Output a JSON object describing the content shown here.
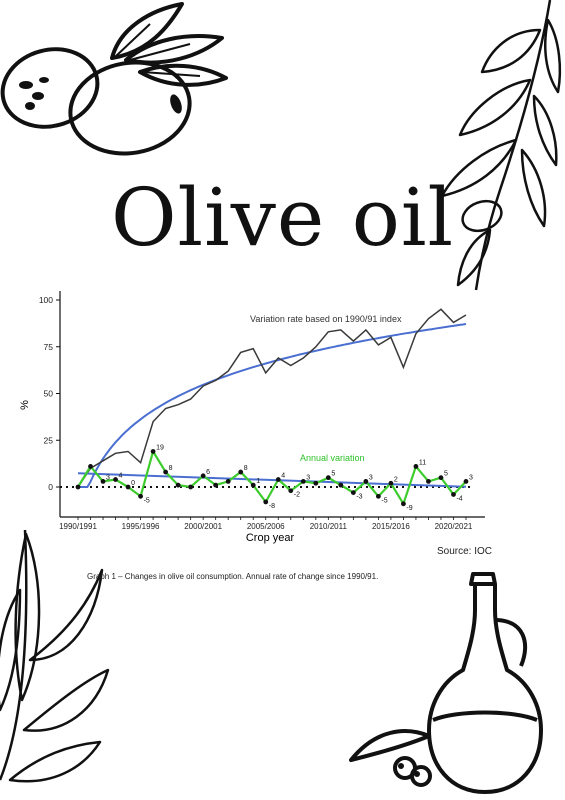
{
  "title": "Olive oil",
  "source": "Source: IOC",
  "caption": "Graph 1 – Changes in olive oil consumption. Annual rate of change since 1990/91.",
  "colors": {
    "index_line": "#3a3a3a",
    "trend_line": "#4a6fd0",
    "annual_line": "#3ccc2c",
    "annual_text": "#2ec02a",
    "ink": "#111111"
  },
  "icons": [
    "olives-with-leaves-icon",
    "olive-branch-icon",
    "leaves-icon",
    "olive-oil-bottle-icon"
  ],
  "chart_data": {
    "type": "line",
    "xlabel": "Crop year",
    "ylabel": "%",
    "ylim": [
      -10,
      100
    ],
    "yticks": [
      0,
      25,
      50,
      75,
      100
    ],
    "x": [
      "1990/91",
      "1991/92",
      "1992/93",
      "1993/94",
      "1994/95",
      "1995/96",
      "1996/97",
      "1997/98",
      "1998/99",
      "1999/00",
      "2000/01",
      "2001/02",
      "2002/03",
      "2003/04",
      "2004/05",
      "2005/06",
      "2006/07",
      "2007/08",
      "2008/09",
      "2009/10",
      "2010/11",
      "2011/12",
      "2012/13",
      "2013/14",
      "2014/15",
      "2015/16",
      "2016/17",
      "2017/18",
      "2018/19",
      "2019/20",
      "2020/21",
      "2021/22"
    ],
    "xtick_labels": [
      "1990/1991",
      "1995/1996",
      "2000/2001",
      "2005/2006",
      "2010/2011",
      "2015/2016",
      "2020/2021"
    ],
    "series": [
      {
        "name": "Variation rate based on 1990/91 index",
        "values": [
          0,
          10,
          14,
          18,
          19,
          13,
          35,
          42,
          44,
          47,
          54,
          57,
          62,
          72,
          74,
          61,
          69,
          65,
          69,
          75,
          83,
          84,
          78,
          84,
          76,
          80,
          64,
          82,
          90,
          95,
          88,
          92
        ]
      },
      {
        "name": "Annual variation",
        "values": [
          0,
          11,
          3,
          4,
          0,
          -5,
          19,
          8,
          1,
          0,
          6,
          1,
          3,
          8,
          1,
          -8,
          4,
          -2,
          3,
          2,
          5,
          1,
          -3,
          3,
          -5,
          2,
          -9,
          11,
          3,
          5,
          -4,
          3
        ],
        "labels": [
          "",
          "",
          "3",
          "4",
          "0",
          "-5",
          "19",
          "8",
          "",
          "",
          "6",
          "",
          "",
          "8",
          "1",
          "-8",
          "4",
          "-2",
          "3",
          "",
          "5",
          "",
          "-3",
          "3",
          "-5",
          "2",
          "-9",
          "11",
          "",
          "5",
          "-4",
          "3"
        ]
      }
    ]
  }
}
